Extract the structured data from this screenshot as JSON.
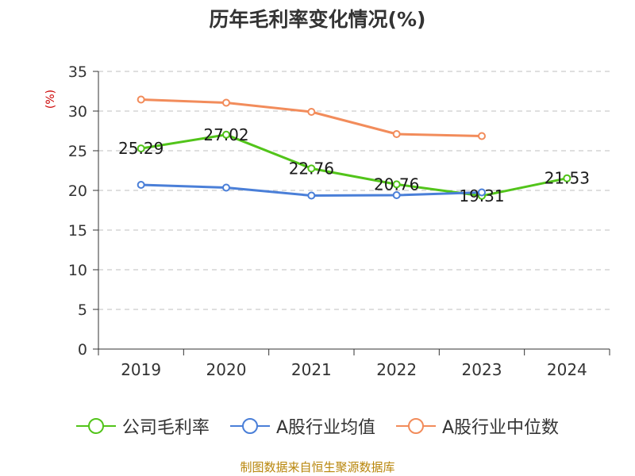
{
  "page": {
    "title": "历年毛利率变化情况(%)",
    "source": "制图数据来自恒生聚源数据库"
  },
  "chart_data": {
    "type": "line",
    "title": "历年毛利率变化情况(%)",
    "ylabel": "(%)",
    "xlabel": "",
    "categories": [
      "2019",
      "2020",
      "2021",
      "2022",
      "2023",
      "2024"
    ],
    "ylim": [
      0,
      35
    ],
    "yticks": [
      0,
      5,
      10,
      15,
      20,
      25,
      30,
      35
    ],
    "grid": true,
    "legend_position": "bottom",
    "series": [
      {
        "name": "公司毛利率",
        "color": "#52c41a",
        "values": [
          25.29,
          27.02,
          22.76,
          20.76,
          19.31,
          21.53
        ],
        "data_labels": [
          "25.29",
          "27.02",
          "22.76",
          "20.76",
          "19.31",
          "21.53"
        ]
      },
      {
        "name": "A股行业均值",
        "color": "#4a7fd8",
        "values": [
          20.7,
          20.35,
          19.35,
          19.4,
          19.75,
          null
        ]
      },
      {
        "name": "A股行业中位数",
        "color": "#f28c5b",
        "values": [
          31.45,
          31.05,
          29.9,
          27.1,
          26.85,
          null
        ]
      }
    ]
  }
}
